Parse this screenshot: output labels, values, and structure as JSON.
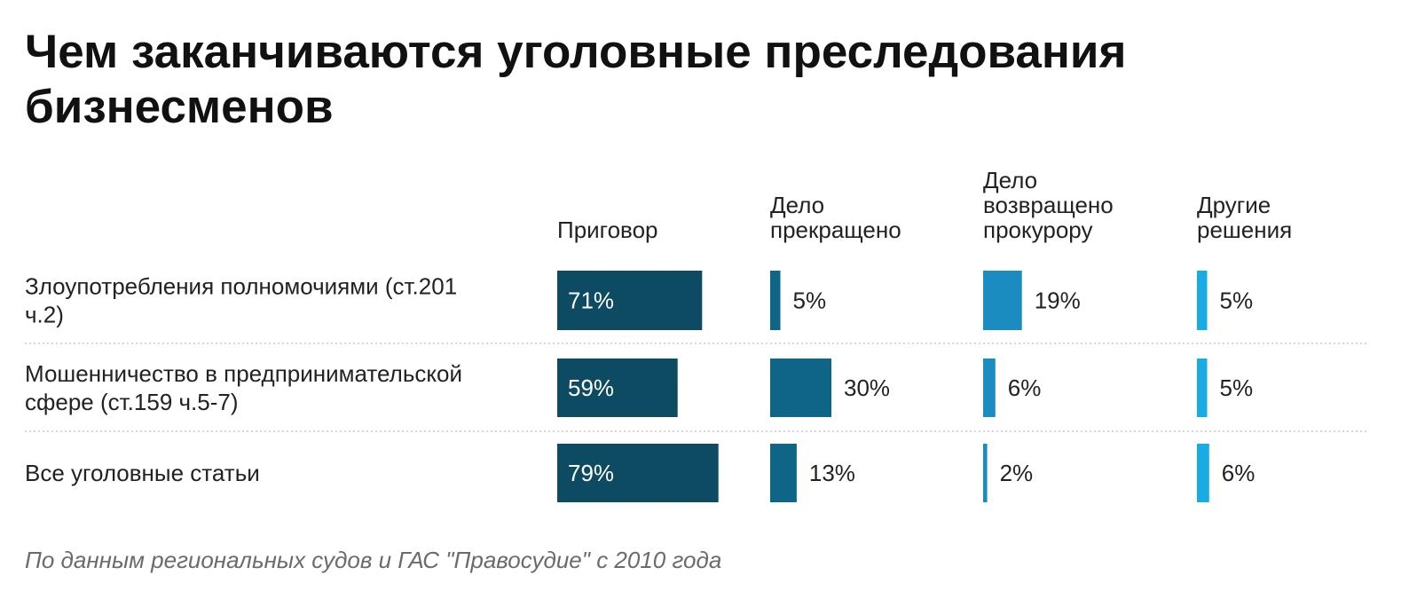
{
  "chart_data": {
    "type": "bar",
    "title": "Чем заканчиваются уголовные преследования бизнесменов",
    "note": "По данным региональных судов и ГАС \"Правосудие\" с 2010 года",
    "categories": [
      [
        "Злоупотребления полномочиями (ст.201",
        "ч.2)"
      ],
      [
        "Мошенничество в предпринимательской",
        "сфере (ст.159 ч.5-7)"
      ],
      [
        "Все уголовные статьи"
      ]
    ],
    "series": [
      {
        "name": [
          "Приговор"
        ],
        "color": "#0d4b63",
        "values": [
          71,
          59,
          79
        ]
      },
      {
        "name": [
          "Дело",
          "прекращено"
        ],
        "color": "#0f6585",
        "values": [
          5,
          30,
          13
        ]
      },
      {
        "name": [
          "Дело",
          "возвращено",
          "прокурору"
        ],
        "color": "#1a8cbf",
        "values": [
          19,
          6,
          2
        ]
      },
      {
        "name": [
          "Другие",
          "решения"
        ],
        "color": "#19abe3",
        "values": [
          5,
          5,
          6
        ]
      }
    ],
    "value_suffix": "%",
    "grid": false
  }
}
